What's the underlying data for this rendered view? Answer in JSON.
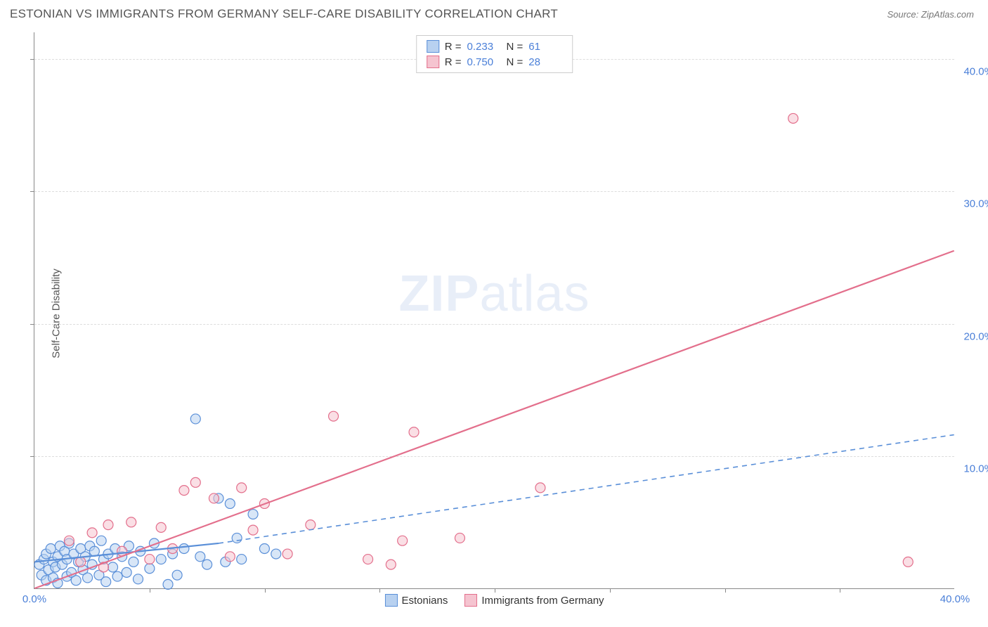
{
  "header": {
    "title": "ESTONIAN VS IMMIGRANTS FROM GERMANY SELF-CARE DISABILITY CORRELATION CHART",
    "source_prefix": "Source: ",
    "source_name": "ZipAtlas.com"
  },
  "watermark": {
    "zip": "ZIP",
    "atlas": "atlas"
  },
  "chart": {
    "type": "scatter",
    "background_color": "#ffffff",
    "grid_color": "#dddddd",
    "axis_color": "#888888",
    "tick_label_color": "#4a7fd8",
    "axis_label_color": "#555555",
    "y_label": "Self-Care Disability",
    "xlim": [
      0,
      40
    ],
    "ylim": [
      0,
      42
    ],
    "y_ticks": [
      10,
      20,
      30,
      40
    ],
    "y_tick_labels": [
      "10.0%",
      "20.0%",
      "30.0%",
      "40.0%"
    ],
    "x_ticks": [
      0,
      40
    ],
    "x_tick_labels": [
      "0.0%",
      "40.0%"
    ],
    "x_minor_grid": [
      5,
      10,
      15,
      20,
      25,
      30,
      35
    ],
    "marker_radius": 7,
    "marker_stroke_width": 1.2,
    "series": [
      {
        "name": "Estonians",
        "fill": "#b8d1f0",
        "stroke": "#5a8fd8",
        "fill_opacity": 0.55,
        "stats": {
          "R": "0.233",
          "N": "61"
        },
        "trend": {
          "x1": 0,
          "y1": 2.0,
          "x2_solid": 8,
          "y2_solid": 3.4,
          "x2": 40,
          "y2": 11.6,
          "stroke_width": 2.2
        },
        "points": [
          [
            0.2,
            1.8
          ],
          [
            0.3,
            1.0
          ],
          [
            0.4,
            2.2
          ],
          [
            0.5,
            0.6
          ],
          [
            0.5,
            2.6
          ],
          [
            0.6,
            1.4
          ],
          [
            0.7,
            3.0
          ],
          [
            0.8,
            0.8
          ],
          [
            0.8,
            2.0
          ],
          [
            0.9,
            1.6
          ],
          [
            1.0,
            2.4
          ],
          [
            1.0,
            0.4
          ],
          [
            1.1,
            3.2
          ],
          [
            1.2,
            1.8
          ],
          [
            1.3,
            2.8
          ],
          [
            1.4,
            0.9
          ],
          [
            1.4,
            2.2
          ],
          [
            1.5,
            3.4
          ],
          [
            1.6,
            1.2
          ],
          [
            1.7,
            2.6
          ],
          [
            1.8,
            0.6
          ],
          [
            1.9,
            2.0
          ],
          [
            2.0,
            3.0
          ],
          [
            2.1,
            1.4
          ],
          [
            2.2,
            2.4
          ],
          [
            2.3,
            0.8
          ],
          [
            2.4,
            3.2
          ],
          [
            2.5,
            1.8
          ],
          [
            2.6,
            2.8
          ],
          [
            2.8,
            1.0
          ],
          [
            2.9,
            3.6
          ],
          [
            3.0,
            2.2
          ],
          [
            3.1,
            0.5
          ],
          [
            3.2,
            2.6
          ],
          [
            3.4,
            1.6
          ],
          [
            3.5,
            3.0
          ],
          [
            3.6,
            0.9
          ],
          [
            3.8,
            2.4
          ],
          [
            4.0,
            1.2
          ],
          [
            4.1,
            3.2
          ],
          [
            4.3,
            2.0
          ],
          [
            4.5,
            0.7
          ],
          [
            4.6,
            2.8
          ],
          [
            5.0,
            1.5
          ],
          [
            5.2,
            3.4
          ],
          [
            5.5,
            2.2
          ],
          [
            5.8,
            0.3
          ],
          [
            6.0,
            2.6
          ],
          [
            6.2,
            1.0
          ],
          [
            6.5,
            3.0
          ],
          [
            7.0,
            12.8
          ],
          [
            7.2,
            2.4
          ],
          [
            7.5,
            1.8
          ],
          [
            8.0,
            6.8
          ],
          [
            8.3,
            2.0
          ],
          [
            8.5,
            6.4
          ],
          [
            8.8,
            3.8
          ],
          [
            9.0,
            2.2
          ],
          [
            9.5,
            5.6
          ],
          [
            10.0,
            3.0
          ],
          [
            10.5,
            2.6
          ]
        ]
      },
      {
        "name": "Immigrants from Germany",
        "fill": "#f5c4d0",
        "stroke": "#e36f8c",
        "fill_opacity": 0.55,
        "stats": {
          "R": "0.750",
          "N": "28"
        },
        "trend": {
          "x1": 0,
          "y1": 0.0,
          "x2_solid": 40,
          "y2_solid": 25.5,
          "x2": 40,
          "y2": 25.5,
          "stroke_width": 2.2
        },
        "points": [
          [
            1.5,
            3.6
          ],
          [
            2.0,
            2.0
          ],
          [
            2.5,
            4.2
          ],
          [
            3.0,
            1.6
          ],
          [
            3.2,
            4.8
          ],
          [
            3.8,
            2.8
          ],
          [
            4.2,
            5.0
          ],
          [
            5.0,
            2.2
          ],
          [
            5.5,
            4.6
          ],
          [
            6.0,
            3.0
          ],
          [
            6.5,
            7.4
          ],
          [
            7.0,
            8.0
          ],
          [
            7.8,
            6.8
          ],
          [
            8.5,
            2.4
          ],
          [
            9.0,
            7.6
          ],
          [
            9.5,
            4.4
          ],
          [
            10.0,
            6.4
          ],
          [
            11.0,
            2.6
          ],
          [
            12.0,
            4.8
          ],
          [
            13.0,
            13.0
          ],
          [
            14.5,
            2.2
          ],
          [
            15.5,
            1.8
          ],
          [
            16.0,
            3.6
          ],
          [
            16.5,
            11.8
          ],
          [
            18.5,
            3.8
          ],
          [
            22.0,
            7.6
          ],
          [
            33.0,
            35.5
          ],
          [
            38.0,
            2.0
          ]
        ]
      }
    ]
  },
  "stats_box": {
    "R_label": "R  =",
    "N_label": "N  ="
  },
  "legend": {
    "items": [
      "Estonians",
      "Immigrants from Germany"
    ]
  }
}
